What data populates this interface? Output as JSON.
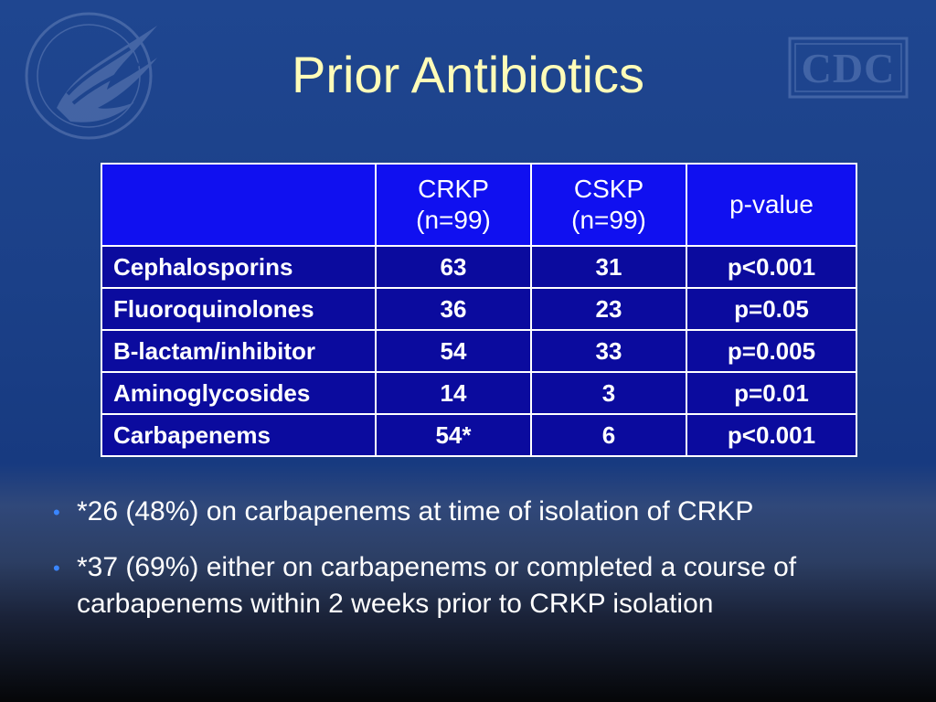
{
  "slide": {
    "title": "Prior Antibiotics"
  },
  "logos": {
    "left": "hhs-eagle-seal-icon",
    "right_text": "CDC"
  },
  "table": {
    "headers": [
      {
        "line1": "",
        "line2": ""
      },
      {
        "line1": "CRKP",
        "line2": "(n=99)"
      },
      {
        "line1": "CSKP",
        "line2": "(n=99)"
      },
      {
        "line1": "p-value",
        "line2": ""
      }
    ],
    "rows": [
      {
        "label": "Cephalosporins",
        "crkp": "63",
        "cskp": "31",
        "pvalue": "p<0.001"
      },
      {
        "label": "Fluoroquinolones",
        "crkp": "36",
        "cskp": "23",
        "pvalue": "p=0.05"
      },
      {
        "label": "B-lactam/inhibitor",
        "crkp": "54",
        "cskp": "33",
        "pvalue": "p=0.005"
      },
      {
        "label": "Aminoglycosides",
        "crkp": "14",
        "cskp": "3",
        "pvalue": "p=0.01"
      },
      {
        "label": "Carbapenems",
        "crkp": "54*",
        "cskp": "6",
        "pvalue": "p<0.001"
      }
    ]
  },
  "notes": [
    {
      "bullet": "•",
      "text": "*26 (48%) on carbapenems at time of isolation of CRKP"
    },
    {
      "bullet": "•",
      "text": "*37 (69%) either on carbapenems or completed a course of carbapenems within 2 weeks prior to CRKP isolation"
    }
  ],
  "colors": {
    "title": "#fffcb8",
    "header_fill": "#1010f0",
    "body_fill": "#0b0b9e",
    "bullet": "#3a86ff"
  }
}
